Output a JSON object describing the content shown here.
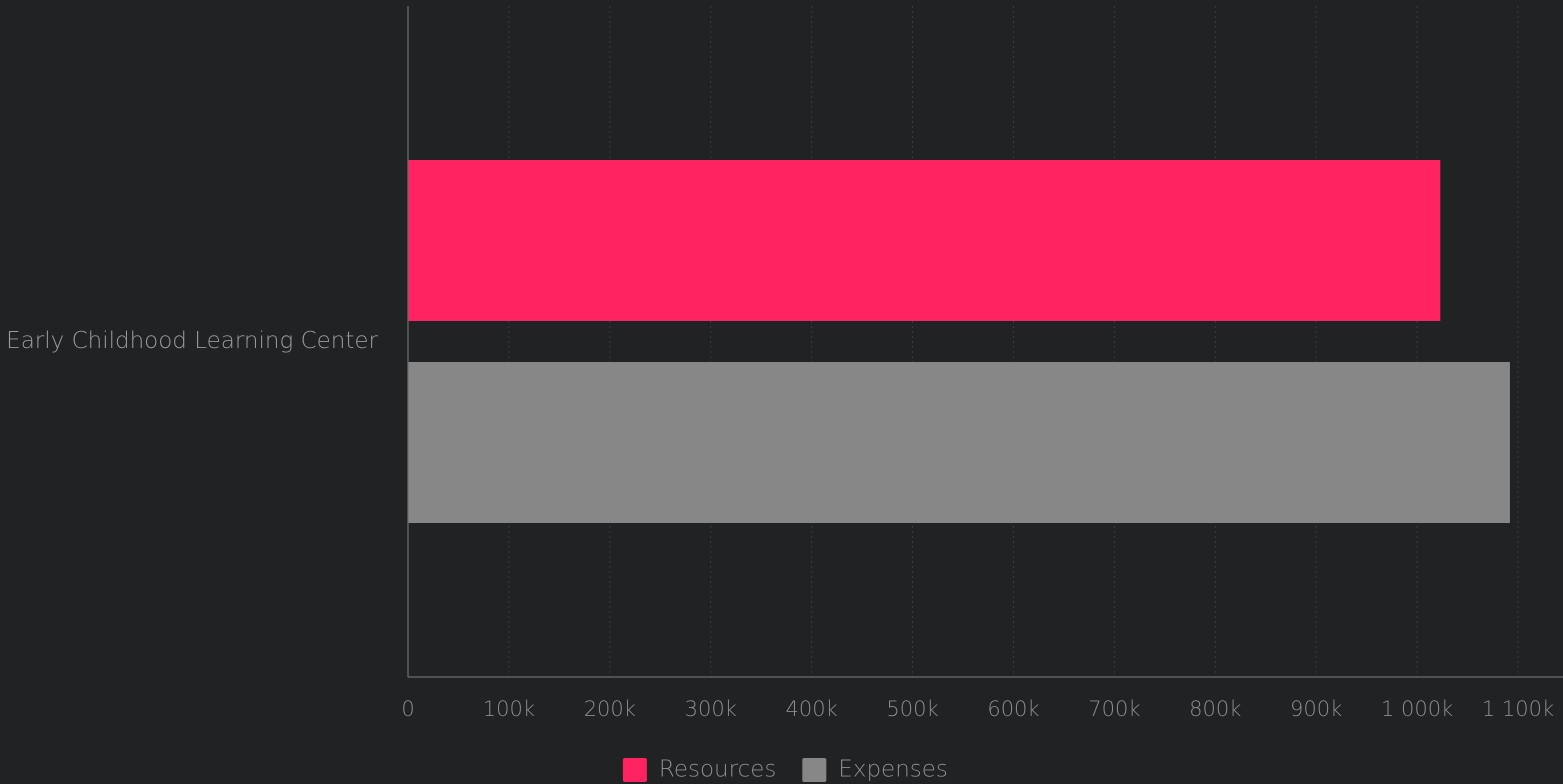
{
  "chart_data": {
    "type": "bar",
    "orientation": "horizontal",
    "categories": [
      "Early Childhood Learning Center"
    ],
    "series": [
      {
        "name": "Resources",
        "color": "#ff2461",
        "values": [
          1023000
        ]
      },
      {
        "name": "Expenses",
        "color": "#878787",
        "values": [
          1092000
        ]
      }
    ],
    "xlim": [
      0,
      1100000
    ],
    "x_ticks": [
      {
        "value": 0,
        "label": "0"
      },
      {
        "value": 100000,
        "label": "100k"
      },
      {
        "value": 200000,
        "label": "200k"
      },
      {
        "value": 300000,
        "label": "300k"
      },
      {
        "value": 400000,
        "label": "400k"
      },
      {
        "value": 500000,
        "label": "500k"
      },
      {
        "value": 600000,
        "label": "600k"
      },
      {
        "value": 700000,
        "label": "700k"
      },
      {
        "value": 800000,
        "label": "800k"
      },
      {
        "value": 900000,
        "label": "900k"
      },
      {
        "value": 1000000,
        "label": "1 000k"
      },
      {
        "value": 1100000,
        "label": "1 100k"
      }
    ],
    "grid": true,
    "legend_position": "bottom",
    "background": "#212224",
    "axis_color": "#6e6e6e",
    "grid_color": "#3a3b3d"
  }
}
